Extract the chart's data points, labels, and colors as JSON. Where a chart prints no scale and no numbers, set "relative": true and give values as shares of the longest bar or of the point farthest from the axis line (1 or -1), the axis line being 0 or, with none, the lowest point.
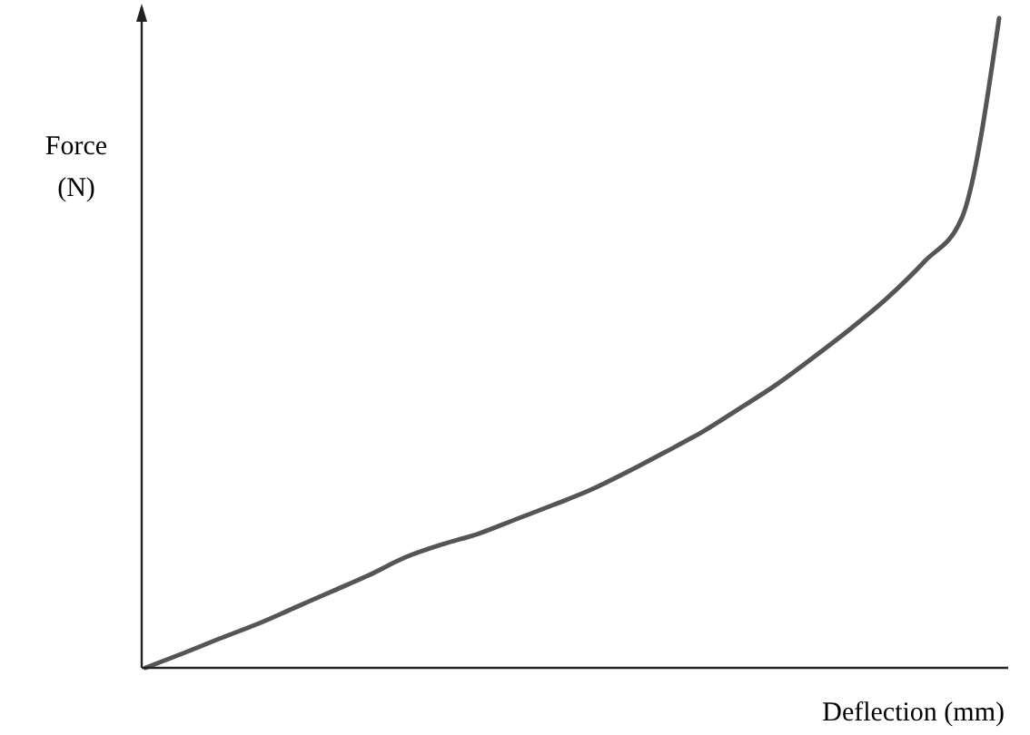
{
  "chart_data": {
    "type": "line",
    "relative": true,
    "xlabel": "Deflection  (mm)",
    "ylabel": "Force\n(N)",
    "categories": [
      null,
      null,
      null,
      null,
      null,
      null,
      null,
      null,
      null,
      null,
      null,
      null,
      null,
      null,
      null,
      null,
      null,
      null,
      null,
      null,
      null,
      null,
      null,
      null
    ],
    "series": [
      {
        "color": "#555555",
        "values": [
          0,
          0.022,
          0.045,
          0.067,
          0.092,
          0.117,
          0.142,
          0.17,
          0.19,
          0.207,
          0.229,
          0.251,
          0.274,
          0.302,
          0.332,
          0.363,
          0.399,
          0.436,
          0.478,
          0.522,
          0.57,
          0.626,
          0.693,
          1.0
        ]
      }
    ],
    "line_style": "solid",
    "marker": "none"
  }
}
